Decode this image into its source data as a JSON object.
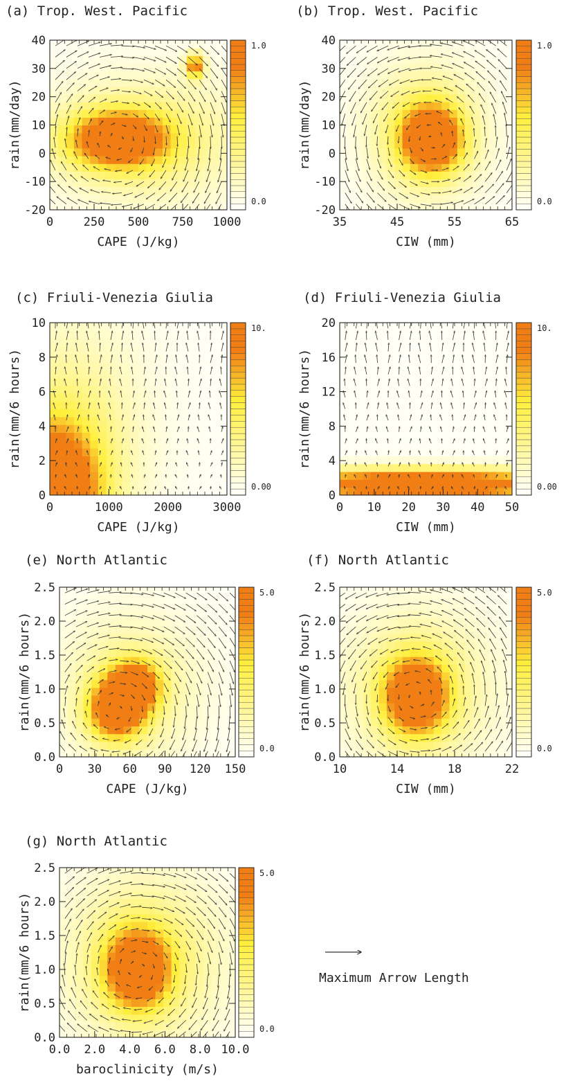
{
  "figure": {
    "legend_text": "Maximum Arrow Length",
    "colormap": {
      "low": "#fffff6",
      "mid": "#ffef3c",
      "high": "#f07e14"
    }
  },
  "chart_data": [
    {
      "id": "a",
      "type": "heatmap",
      "title": "(a) Trop. West. Pacific",
      "xlabel": "CAPE (J/kg)",
      "ylabel": "rain(mm/day)",
      "xlim": [
        0,
        1000
      ],
      "ylim": [
        -20,
        40
      ],
      "xticks": [
        "0",
        "250",
        "500",
        "750",
        "1000"
      ],
      "yticks": [
        "-20",
        "-10",
        "0",
        "10",
        "20",
        "30",
        "40"
      ],
      "colorbar": {
        "min_label": "0.0",
        "max_label": "1.0"
      },
      "density_blobs": [
        {
          "x": 380,
          "y": 5,
          "sx": 200,
          "sy": 7,
          "a": 1.0
        },
        {
          "x": 820,
          "y": 31,
          "sx": 35,
          "sy": 3,
          "a": 0.9
        },
        {
          "x": 550,
          "y": 5,
          "sx": 400,
          "sy": 16,
          "a": 0.35
        }
      ],
      "arrows": "circulation around high-density core, strongest near edges"
    },
    {
      "id": "b",
      "type": "heatmap",
      "title": "(b) Trop. West. Pacific",
      "xlabel": "CIW (mm)",
      "ylabel": "rain(mm/day)",
      "xlim": [
        35,
        65
      ],
      "ylim": [
        -20,
        40
      ],
      "xticks": [
        "35",
        "45",
        "55",
        "65"
      ],
      "yticks": [
        "-20",
        "-10",
        "0",
        "10",
        "20",
        "30",
        "40"
      ],
      "colorbar": {
        "min_label": "0.0",
        "max_label": "1.0"
      },
      "density_blobs": [
        {
          "x": 51,
          "y": 5,
          "sx": 3.6,
          "sy": 8,
          "a": 1.0
        },
        {
          "x": 50,
          "y": 8,
          "sx": 7,
          "sy": 16,
          "a": 0.45
        }
      ],
      "arrows": "counter-clockwise circulation around core"
    },
    {
      "id": "c",
      "type": "heatmap",
      "title": "(c) Friuli-Venezia Giulia",
      "xlabel": "CAPE (J/kg)",
      "ylabel": "rain(mm/6 hours)",
      "xlim": [
        0,
        3000
      ],
      "ylim": [
        0,
        10
      ],
      "xticks": [
        "0",
        "1000",
        "2000",
        "3000"
      ],
      "yticks": [
        "0",
        "2",
        "4",
        "6",
        "8",
        "10"
      ],
      "colorbar": {
        "min_label": "0.00",
        "max_label": "10."
      },
      "density_blobs": [
        {
          "x": 0,
          "y": 0,
          "sx": 550,
          "sy": 2.6,
          "a": 1.3
        },
        {
          "x": 300,
          "y": 3,
          "sx": 900,
          "sy": 5,
          "a": 0.35
        }
      ],
      "arrows": "upward/sheared arrows, dense bundle near 1500-2200 J/kg high rain"
    },
    {
      "id": "d",
      "type": "heatmap",
      "title": "(d) Friuli-Venezia Giulia",
      "xlabel": "CIW (mm)",
      "ylabel": "rain(mm/6 hours)",
      "xlim": [
        0,
        50
      ],
      "ylim": [
        0,
        20
      ],
      "xticks": [
        "0",
        "10",
        "20",
        "30",
        "40",
        "50"
      ],
      "yticks": [
        "0",
        "4",
        "8",
        "12",
        "16",
        "20"
      ],
      "colorbar": {
        "min_label": "0.00",
        "max_label": "10."
      },
      "density_blobs": [
        {
          "x": 24,
          "y": 1.3,
          "sx": 30,
          "sy": 1.2,
          "a": 1.3
        }
      ],
      "arrows": "mostly vertical arrows above a saturated low-rain band"
    },
    {
      "id": "e",
      "type": "heatmap",
      "title": "(e) North Atlantic",
      "xlabel": "CAPE (J/kg)",
      "ylabel": "rain(mm/6 hours)",
      "xlim": [
        0,
        150
      ],
      "ylim": [
        0,
        2.5
      ],
      "xticks": [
        "0",
        "30",
        "60",
        "90",
        "120",
        "150"
      ],
      "yticks": [
        "0.0",
        "0.5",
        "1.0",
        "1.5",
        "2.0",
        "2.5"
      ],
      "colorbar": {
        "min_label": "0.0",
        "max_label": "5.0"
      },
      "density_blobs": [
        {
          "x": 48,
          "y": 0.7,
          "sx": 16,
          "sy": 0.3,
          "a": 1.0
        },
        {
          "x": 65,
          "y": 1.05,
          "sx": 14,
          "sy": 0.25,
          "a": 0.9
        },
        {
          "x": 60,
          "y": 1.0,
          "sx": 40,
          "sy": 0.75,
          "a": 0.35
        }
      ],
      "arrows": "diagonal circulation around core"
    },
    {
      "id": "f",
      "type": "heatmap",
      "title": "(f) North Atlantic",
      "xlabel": "CIW (mm)",
      "ylabel": "rain(mm/6 hours)",
      "xlim": [
        10,
        22
      ],
      "ylim": [
        0,
        2.5
      ],
      "xticks": [
        "10",
        "14",
        "18",
        "22"
      ],
      "yticks": [
        "0.0",
        "0.5",
        "1.0",
        "1.5",
        "2.0",
        "2.5"
      ],
      "colorbar": {
        "min_label": "0.0",
        "max_label": "5.0"
      },
      "density_blobs": [
        {
          "x": 15.3,
          "y": 0.9,
          "sx": 1.5,
          "sy": 0.38,
          "a": 1.0
        },
        {
          "x": 15.5,
          "y": 1.0,
          "sx": 3.5,
          "sy": 0.8,
          "a": 0.4
        }
      ],
      "arrows": "clockwise circulation around core"
    },
    {
      "id": "g",
      "type": "heatmap",
      "title": "(g) North Atlantic",
      "xlabel": "baroclinicity (m/s)",
      "ylabel": "rain(mm/6 hours)",
      "xlim": [
        0,
        10
      ],
      "ylim": [
        0,
        2.5
      ],
      "xticks": [
        "0.0",
        "2.0",
        "4.0",
        "6.0",
        "8.0",
        "10.0"
      ],
      "yticks": [
        "0.0",
        "0.5",
        "1.0",
        "1.5",
        "2.0",
        "2.5"
      ],
      "colorbar": {
        "min_label": "0.0",
        "max_label": "5.0"
      },
      "density_blobs": [
        {
          "x": 4.4,
          "y": 1.0,
          "sx": 1.2,
          "sy": 0.38,
          "a": 1.0
        },
        {
          "x": 4.8,
          "y": 1.15,
          "sx": 3.0,
          "sy": 0.85,
          "a": 0.45
        }
      ],
      "arrows": "vortex circulation around core"
    }
  ]
}
